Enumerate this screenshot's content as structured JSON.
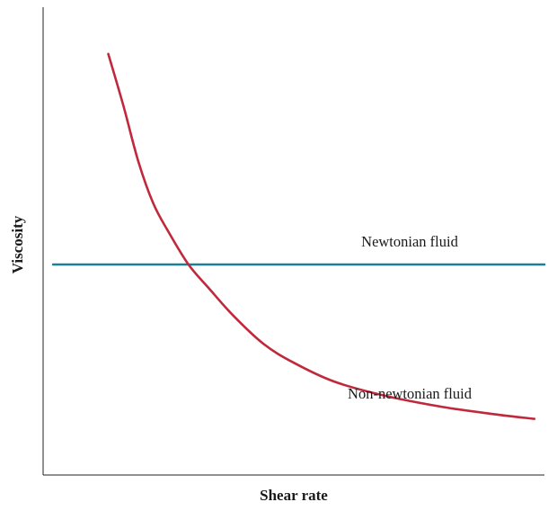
{
  "chart_data": {
    "type": "line",
    "title": "",
    "xlabel": "Shear rate",
    "ylabel": "Viscosity",
    "show_ticks": false,
    "grid": false,
    "xlim": [
      0,
      100
    ],
    "ylim": [
      0,
      100
    ],
    "series": [
      {
        "name": "Newtonian fluid",
        "color": "#1c7f94",
        "points": [
          [
            2,
            45
          ],
          [
            100,
            45
          ]
        ]
      },
      {
        "name": "Non-newtonian fluid",
        "color": "#c0293b",
        "points": [
          [
            13,
            90
          ],
          [
            16,
            79
          ],
          [
            19,
            67
          ],
          [
            22,
            58
          ],
          [
            25,
            52
          ],
          [
            29,
            45
          ],
          [
            33,
            40
          ],
          [
            38,
            34
          ],
          [
            44,
            28
          ],
          [
            50,
            24
          ],
          [
            58,
            20
          ],
          [
            68,
            17
          ],
          [
            80,
            14.5
          ],
          [
            90,
            13
          ],
          [
            98,
            12
          ]
        ]
      }
    ]
  }
}
